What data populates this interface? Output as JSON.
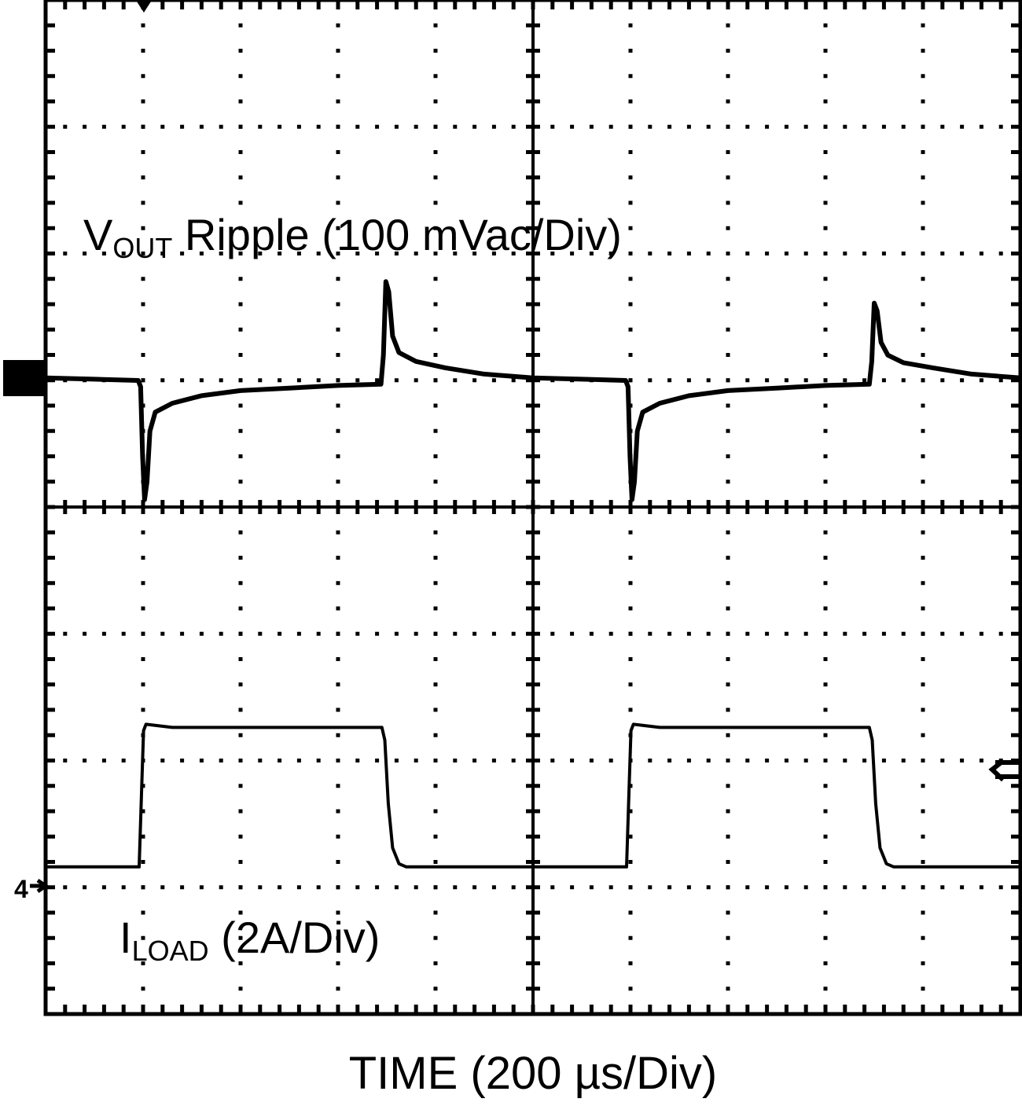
{
  "chart_data": {
    "type": "line",
    "title": "",
    "xlabel": "TIME (200 µs/Div)",
    "x_units": "µs",
    "xlim": [
      0,
      2000
    ],
    "x_divisions": 10,
    "y_divisions": 8,
    "grid": true,
    "colors": {
      "trace": "#000000",
      "background": "#ffffff"
    },
    "markers": {
      "channel1_reference": "1",
      "channel4_reference": "4"
    },
    "series": [
      {
        "name": "VOUT Ripple (100 mVac/Div)",
        "label_main": "V",
        "label_sub": "OUT",
        "label_rest": " Ripple (100 mVac/Div)",
        "units": "mV",
        "scale_per_div": 100,
        "points": [
          [
            0,
            2
          ],
          [
            100,
            1
          ],
          [
            190,
            0
          ],
          [
            195,
            -5
          ],
          [
            199,
            -60
          ],
          [
            203,
            -94
          ],
          [
            208,
            -80
          ],
          [
            214,
            -40
          ],
          [
            225,
            -25
          ],
          [
            260,
            -18
          ],
          [
            320,
            -12
          ],
          [
            400,
            -8
          ],
          [
            500,
            -6
          ],
          [
            600,
            -4
          ],
          [
            688,
            -3
          ],
          [
            693,
            20
          ],
          [
            698,
            78
          ],
          [
            704,
            70
          ],
          [
            712,
            35
          ],
          [
            725,
            22
          ],
          [
            760,
            15
          ],
          [
            820,
            10
          ],
          [
            900,
            5
          ],
          [
            1000,
            2
          ],
          [
            1100,
            1
          ],
          [
            1190,
            0
          ],
          [
            1195,
            -5
          ],
          [
            1199,
            -60
          ],
          [
            1203,
            -94
          ],
          [
            1208,
            -80
          ],
          [
            1214,
            -40
          ],
          [
            1225,
            -25
          ],
          [
            1260,
            -18
          ],
          [
            1320,
            -12
          ],
          [
            1400,
            -8
          ],
          [
            1500,
            -6
          ],
          [
            1600,
            -4
          ],
          [
            1690,
            -3
          ],
          [
            1695,
            15
          ],
          [
            1700,
            61
          ],
          [
            1706,
            55
          ],
          [
            1714,
            30
          ],
          [
            1728,
            20
          ],
          [
            1760,
            14
          ],
          [
            1820,
            10
          ],
          [
            1900,
            5
          ],
          [
            2000,
            2
          ]
        ]
      },
      {
        "name": "ILOAD (2A/Div)",
        "label_main": "I",
        "label_sub": "LOAD",
        "label_rest": " (2A/Div)",
        "units": "A",
        "scale_per_div": 2,
        "points": [
          [
            0,
            0.3
          ],
          [
            192,
            0.3
          ],
          [
            197,
            1.5
          ],
          [
            201,
            2.45
          ],
          [
            206,
            2.55
          ],
          [
            260,
            2.5
          ],
          [
            690,
            2.5
          ],
          [
            696,
            2.3
          ],
          [
            703,
            1.3
          ],
          [
            712,
            0.6
          ],
          [
            725,
            0.35
          ],
          [
            740,
            0.3
          ],
          [
            1192,
            0.3
          ],
          [
            1197,
            1.5
          ],
          [
            1201,
            2.45
          ],
          [
            1206,
            2.55
          ],
          [
            1260,
            2.5
          ],
          [
            1690,
            2.5
          ],
          [
            1696,
            2.3
          ],
          [
            1703,
            1.3
          ],
          [
            1712,
            0.6
          ],
          [
            1725,
            0.35
          ],
          [
            1740,
            0.3
          ],
          [
            2000,
            0.3
          ]
        ]
      }
    ]
  }
}
